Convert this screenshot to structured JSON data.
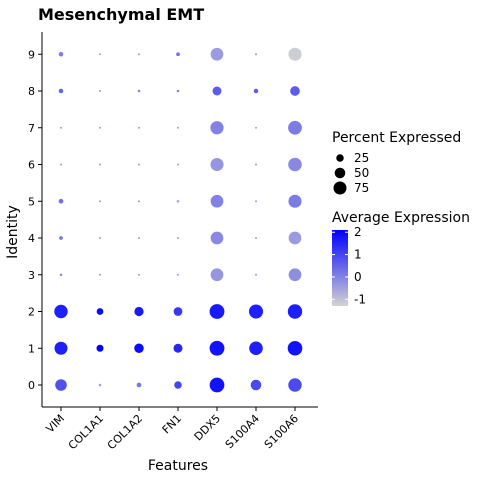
{
  "chart_data": {
    "type": "dotplot",
    "title": "Mesenchymal EMT",
    "xlabel": "Features",
    "ylabel": "Identity",
    "features": [
      "VIM",
      "COL1A1",
      "COL1A2",
      "FN1",
      "DDX5",
      "S100A4",
      "S100A6"
    ],
    "identities": [
      "0",
      "1",
      "2",
      "3",
      "4",
      "5",
      "6",
      "7",
      "8",
      "9"
    ],
    "points": [
      {
        "identity": "0",
        "feature": "VIM",
        "avg_exp": 0.8,
        "pct": 60
      },
      {
        "identity": "0",
        "feature": "COL1A1",
        "avg_exp": -0.5,
        "pct": 3
      },
      {
        "identity": "0",
        "feature": "COL1A2",
        "avg_exp": 0.2,
        "pct": 10
      },
      {
        "identity": "0",
        "feature": "FN1",
        "avg_exp": 1.0,
        "pct": 25
      },
      {
        "identity": "0",
        "feature": "DDX5",
        "avg_exp": 1.8,
        "pct": 96
      },
      {
        "identity": "0",
        "feature": "S100A4",
        "avg_exp": 0.9,
        "pct": 50
      },
      {
        "identity": "0",
        "feature": "S100A6",
        "avg_exp": 0.9,
        "pct": 80
      },
      {
        "identity": "1",
        "feature": "VIM",
        "avg_exp": 1.6,
        "pct": 75
      },
      {
        "identity": "1",
        "feature": "COL1A1",
        "avg_exp": 2.1,
        "pct": 22
      },
      {
        "identity": "1",
        "feature": "COL1A2",
        "avg_exp": 1.9,
        "pct": 40
      },
      {
        "identity": "1",
        "feature": "FN1",
        "avg_exp": 1.5,
        "pct": 36
      },
      {
        "identity": "1",
        "feature": "DDX5",
        "avg_exp": 1.8,
        "pct": 98
      },
      {
        "identity": "1",
        "feature": "S100A4",
        "avg_exp": 1.6,
        "pct": 82
      },
      {
        "identity": "1",
        "feature": "S100A6",
        "avg_exp": 1.8,
        "pct": 95
      },
      {
        "identity": "2",
        "feature": "VIM",
        "avg_exp": 1.6,
        "pct": 80
      },
      {
        "identity": "2",
        "feature": "COL1A1",
        "avg_exp": 1.9,
        "pct": 20
      },
      {
        "identity": "2",
        "feature": "COL1A2",
        "avg_exp": 1.7,
        "pct": 38
      },
      {
        "identity": "2",
        "feature": "FN1",
        "avg_exp": 1.2,
        "pct": 34
      },
      {
        "identity": "2",
        "feature": "DDX5",
        "avg_exp": 1.7,
        "pct": 98
      },
      {
        "identity": "2",
        "feature": "S100A4",
        "avg_exp": 1.6,
        "pct": 88
      },
      {
        "identity": "2",
        "feature": "S100A6",
        "avg_exp": 1.6,
        "pct": 92
      },
      {
        "identity": "3",
        "feature": "VIM",
        "avg_exp": -0.2,
        "pct": 3
      },
      {
        "identity": "3",
        "feature": "COL1A1",
        "avg_exp": -0.5,
        "pct": 2
      },
      {
        "identity": "3",
        "feature": "COL1A2",
        "avg_exp": -0.5,
        "pct": 2
      },
      {
        "identity": "3",
        "feature": "FN1",
        "avg_exp": -0.5,
        "pct": 2
      },
      {
        "identity": "3",
        "feature": "DDX5",
        "avg_exp": -0.3,
        "pct": 72
      },
      {
        "identity": "3",
        "feature": "S100A4",
        "avg_exp": -0.5,
        "pct": 2
      },
      {
        "identity": "3",
        "feature": "S100A6",
        "avg_exp": -0.2,
        "pct": 72
      },
      {
        "identity": "4",
        "feature": "VIM",
        "avg_exp": 0.2,
        "pct": 6
      },
      {
        "identity": "4",
        "feature": "COL1A1",
        "avg_exp": -0.5,
        "pct": 2
      },
      {
        "identity": "4",
        "feature": "COL1A2",
        "avg_exp": -0.5,
        "pct": 2
      },
      {
        "identity": "4",
        "feature": "FN1",
        "avg_exp": -0.5,
        "pct": 2
      },
      {
        "identity": "4",
        "feature": "DDX5",
        "avg_exp": -0.1,
        "pct": 72
      },
      {
        "identity": "4",
        "feature": "S100A4",
        "avg_exp": -0.5,
        "pct": 2
      },
      {
        "identity": "4",
        "feature": "S100A6",
        "avg_exp": -0.4,
        "pct": 72
      },
      {
        "identity": "5",
        "feature": "VIM",
        "avg_exp": 0.3,
        "pct": 10
      },
      {
        "identity": "5",
        "feature": "COL1A1",
        "avg_exp": -0.5,
        "pct": 2
      },
      {
        "identity": "5",
        "feature": "COL1A2",
        "avg_exp": -0.5,
        "pct": 2
      },
      {
        "identity": "5",
        "feature": "FN1",
        "avg_exp": -0.5,
        "pct": 3
      },
      {
        "identity": "5",
        "feature": "DDX5",
        "avg_exp": 0.0,
        "pct": 72
      },
      {
        "identity": "5",
        "feature": "S100A4",
        "avg_exp": -0.5,
        "pct": 2
      },
      {
        "identity": "5",
        "feature": "S100A6",
        "avg_exp": 0.1,
        "pct": 76
      },
      {
        "identity": "6",
        "feature": "VIM",
        "avg_exp": -0.5,
        "pct": 2
      },
      {
        "identity": "6",
        "feature": "COL1A1",
        "avg_exp": -0.5,
        "pct": 2
      },
      {
        "identity": "6",
        "feature": "COL1A2",
        "avg_exp": -0.5,
        "pct": 2
      },
      {
        "identity": "6",
        "feature": "FN1",
        "avg_exp": -0.5,
        "pct": 2
      },
      {
        "identity": "6",
        "feature": "DDX5",
        "avg_exp": -0.3,
        "pct": 76
      },
      {
        "identity": "6",
        "feature": "S100A4",
        "avg_exp": -0.5,
        "pct": 2
      },
      {
        "identity": "6",
        "feature": "S100A6",
        "avg_exp": -0.1,
        "pct": 82
      },
      {
        "identity": "7",
        "feature": "VIM",
        "avg_exp": -0.5,
        "pct": 2
      },
      {
        "identity": "7",
        "feature": "COL1A1",
        "avg_exp": -0.5,
        "pct": 2
      },
      {
        "identity": "7",
        "feature": "COL1A2",
        "avg_exp": -0.5,
        "pct": 2
      },
      {
        "identity": "7",
        "feature": "FN1",
        "avg_exp": -0.5,
        "pct": 2
      },
      {
        "identity": "7",
        "feature": "DDX5",
        "avg_exp": 0.0,
        "pct": 78
      },
      {
        "identity": "7",
        "feature": "S100A4",
        "avg_exp": -0.5,
        "pct": 2
      },
      {
        "identity": "7",
        "feature": "S100A6",
        "avg_exp": 0.1,
        "pct": 84
      },
      {
        "identity": "8",
        "feature": "VIM",
        "avg_exp": 0.5,
        "pct": 9
      },
      {
        "identity": "8",
        "feature": "COL1A1",
        "avg_exp": -0.5,
        "pct": 2
      },
      {
        "identity": "8",
        "feature": "COL1A2",
        "avg_exp": 0.0,
        "pct": 3
      },
      {
        "identity": "8",
        "feature": "FN1",
        "avg_exp": 0.0,
        "pct": 3
      },
      {
        "identity": "8",
        "feature": "DDX5",
        "avg_exp": 0.6,
        "pct": 36
      },
      {
        "identity": "8",
        "feature": "S100A4",
        "avg_exp": 0.6,
        "pct": 9
      },
      {
        "identity": "8",
        "feature": "S100A6",
        "avg_exp": 0.6,
        "pct": 42
      },
      {
        "identity": "9",
        "feature": "VIM",
        "avg_exp": 0.1,
        "pct": 9
      },
      {
        "identity": "9",
        "feature": "COL1A1",
        "avg_exp": -0.5,
        "pct": 2
      },
      {
        "identity": "9",
        "feature": "COL1A2",
        "avg_exp": -0.5,
        "pct": 2
      },
      {
        "identity": "9",
        "feature": "FN1",
        "avg_exp": 0.3,
        "pct": 6
      },
      {
        "identity": "9",
        "feature": "DDX5",
        "avg_exp": -0.4,
        "pct": 72
      },
      {
        "identity": "9",
        "feature": "S100A4",
        "avg_exp": -0.5,
        "pct": 2
      },
      {
        "identity": "9",
        "feature": "S100A6",
        "avg_exp": -1.2,
        "pct": 76
      }
    ],
    "size_legend": {
      "title": "Percent Expressed",
      "breaks": [
        25,
        50,
        75
      ],
      "labels": [
        "25",
        "50",
        "75"
      ]
    },
    "color_legend": {
      "title": "Average Expression",
      "range": [
        -1.3,
        2.1
      ],
      "breaks": [
        2,
        1,
        0,
        -1
      ],
      "labels": [
        "2",
        "1",
        "0",
        "-1"
      ],
      "low_color": "#d3d3d3",
      "high_color": "#0000ff"
    },
    "grid": false,
    "legend_position": "right"
  }
}
